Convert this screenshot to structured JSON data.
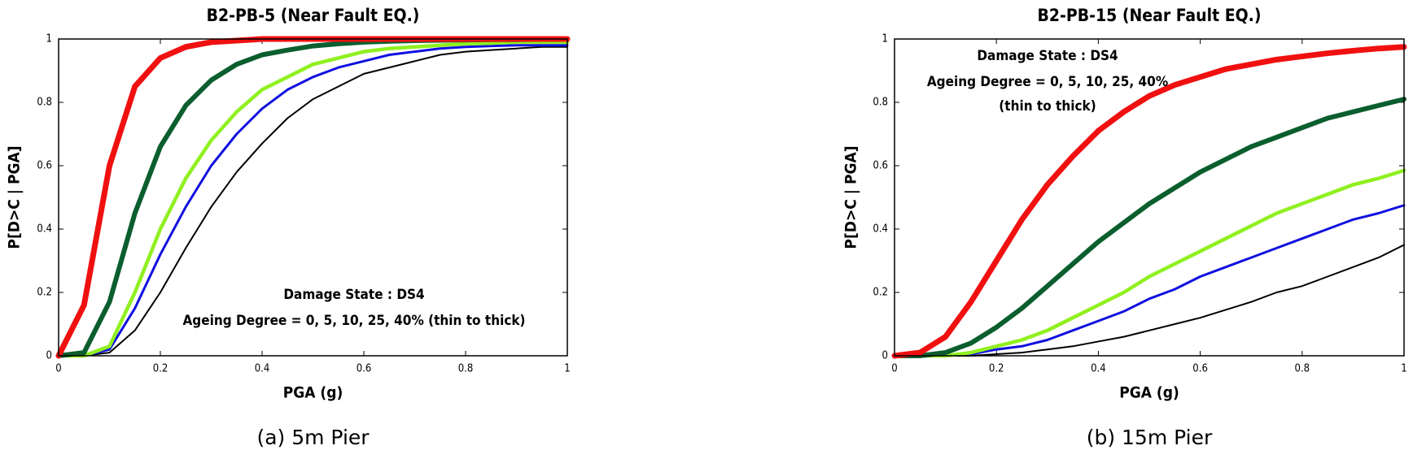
{
  "chart_data": [
    {
      "type": "line",
      "title": "B2-PB-5 (Near Fault EQ.)",
      "xlabel": "PGA (g)",
      "ylabel": "P[D>C | PGA]",
      "caption": "(a) 5m Pier",
      "annotations": [
        "Damage State : DS4",
        "Ageing Degree = 0, 5, 10, 25, 40% (thin to thick)"
      ],
      "xlim": [
        0,
        1
      ],
      "ylim": [
        0,
        1
      ],
      "xticks": [
        0,
        0.2,
        0.4,
        0.6,
        0.8,
        1
      ],
      "yticks": [
        0,
        0.2,
        0.4,
        0.6,
        0.8,
        1
      ],
      "x": [
        0,
        0.05,
        0.1,
        0.15,
        0.2,
        0.25,
        0.3,
        0.35,
        0.4,
        0.45,
        0.5,
        0.55,
        0.6,
        0.65,
        0.7,
        0.75,
        0.8,
        0.85,
        0.9,
        0.95,
        1
      ],
      "series": [
        {
          "color": "#000000",
          "linewidth": 2,
          "values": [
            0,
            0,
            0.01,
            0.08,
            0.2,
            0.34,
            0.47,
            0.58,
            0.67,
            0.75,
            0.81,
            0.85,
            0.89,
            0.91,
            0.93,
            0.95,
            0.96,
            0.965,
            0.97,
            0.975,
            0.975
          ]
        },
        {
          "color": "#1010e0",
          "linewidth": 3,
          "values": [
            0,
            0,
            0.02,
            0.15,
            0.32,
            0.47,
            0.6,
            0.7,
            0.78,
            0.84,
            0.88,
            0.91,
            0.93,
            0.95,
            0.96,
            0.97,
            0.975,
            0.978,
            0.98,
            0.98,
            0.98
          ]
        },
        {
          "color": "#90f020",
          "linewidth": 4.5,
          "values": [
            0,
            0,
            0.03,
            0.2,
            0.4,
            0.56,
            0.68,
            0.77,
            0.84,
            0.88,
            0.92,
            0.94,
            0.96,
            0.97,
            0.975,
            0.98,
            0.985,
            0.987,
            0.99,
            0.99,
            0.99
          ]
        },
        {
          "color": "#0b5e2e",
          "linewidth": 6,
          "values": [
            0,
            0.01,
            0.17,
            0.45,
            0.66,
            0.79,
            0.87,
            0.92,
            0.95,
            0.965,
            0.978,
            0.985,
            0.99,
            0.993,
            0.995,
            0.996,
            0.997,
            0.998,
            0.998,
            0.999,
            0.999
          ]
        },
        {
          "color": "#f01010",
          "linewidth": 7,
          "values": [
            0,
            0.16,
            0.6,
            0.85,
            0.94,
            0.975,
            0.99,
            0.995,
            1,
            1,
            1,
            1,
            1,
            1,
            1,
            1,
            1,
            1,
            1,
            1,
            1
          ]
        }
      ]
    },
    {
      "type": "line",
      "title": "B2-PB-15 (Near Fault EQ.)",
      "xlabel": "PGA (g)",
      "ylabel": "P[D>C | PGA]",
      "caption": "(b) 15m Pier",
      "annotations": [
        "Damage State : DS4",
        "Ageing Degree = 0, 5, 10, 25, 40%",
        "(thin to thick)"
      ],
      "xlim": [
        0,
        1
      ],
      "ylim": [
        0,
        1
      ],
      "xticks": [
        0,
        0.2,
        0.4,
        0.6,
        0.8,
        1
      ],
      "yticks": [
        0,
        0.2,
        0.4,
        0.6,
        0.8,
        1
      ],
      "x": [
        0,
        0.05,
        0.1,
        0.15,
        0.2,
        0.25,
        0.3,
        0.35,
        0.4,
        0.45,
        0.5,
        0.55,
        0.6,
        0.65,
        0.7,
        0.75,
        0.8,
        0.85,
        0.9,
        0.95,
        1
      ],
      "series": [
        {
          "color": "#000000",
          "linewidth": 2,
          "values": [
            0,
            0,
            0,
            0,
            0.005,
            0.01,
            0.02,
            0.03,
            0.045,
            0.06,
            0.08,
            0.1,
            0.12,
            0.145,
            0.17,
            0.2,
            0.22,
            0.25,
            0.28,
            0.31,
            0.35
          ]
        },
        {
          "color": "#1010e0",
          "linewidth": 3,
          "values": [
            0,
            0,
            0,
            0.005,
            0.02,
            0.03,
            0.05,
            0.08,
            0.11,
            0.14,
            0.18,
            0.21,
            0.25,
            0.28,
            0.31,
            0.34,
            0.37,
            0.4,
            0.43,
            0.45,
            0.475
          ]
        },
        {
          "color": "#90f020",
          "linewidth": 4.5,
          "values": [
            0,
            0,
            0,
            0.01,
            0.03,
            0.05,
            0.08,
            0.12,
            0.16,
            0.2,
            0.25,
            0.29,
            0.33,
            0.37,
            0.41,
            0.45,
            0.48,
            0.51,
            0.54,
            0.56,
            0.585
          ]
        },
        {
          "color": "#0b5e2e",
          "linewidth": 6,
          "values": [
            0,
            0,
            0.01,
            0.04,
            0.09,
            0.15,
            0.22,
            0.29,
            0.36,
            0.42,
            0.48,
            0.53,
            0.58,
            0.62,
            0.66,
            0.69,
            0.72,
            0.75,
            0.77,
            0.79,
            0.81
          ]
        },
        {
          "color": "#f01010",
          "linewidth": 7,
          "values": [
            0,
            0.01,
            0.06,
            0.17,
            0.3,
            0.43,
            0.54,
            0.63,
            0.71,
            0.77,
            0.82,
            0.855,
            0.88,
            0.905,
            0.92,
            0.935,
            0.945,
            0.955,
            0.963,
            0.97,
            0.975
          ]
        }
      ]
    }
  ]
}
